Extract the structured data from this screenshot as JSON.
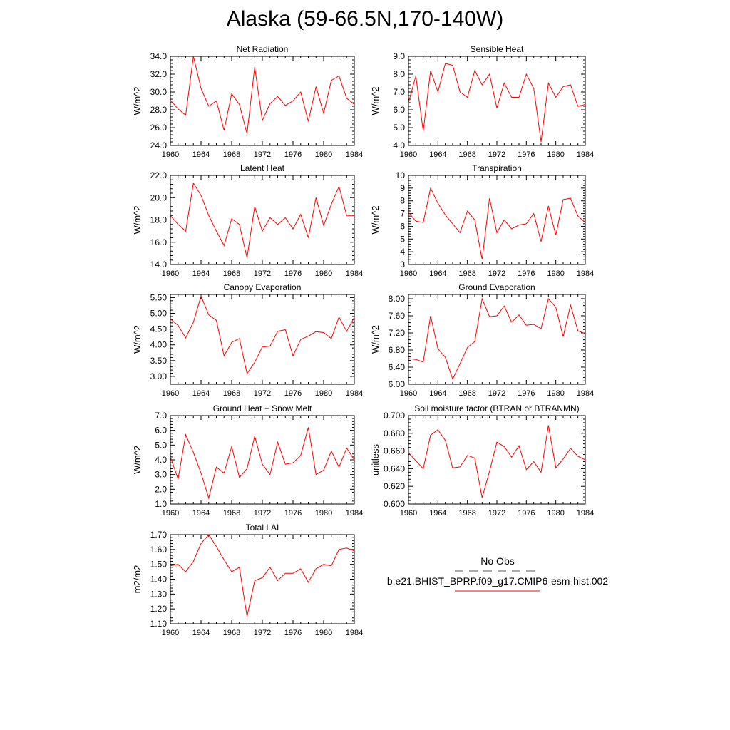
{
  "title": "Alaska (59-66.5N,170-140W)",
  "colors": {
    "model_line": "#ff0000",
    "obs_line": "#555555",
    "axis": "#000000"
  },
  "legend": {
    "obs_label": "No Obs",
    "model_label": "b.e21.BHIST_BPRP.f09_g17.CMIP6-esm-hist.002"
  },
  "chart_data": [
    {
      "type": "line",
      "title": "Net Radiation",
      "xlabel": "",
      "ylabel": "W/m^2",
      "xlim": [
        1960,
        1984
      ],
      "ylim": [
        24.0,
        34.0
      ],
      "xticks": [
        1960,
        1964,
        1968,
        1972,
        1976,
        1980,
        1984
      ],
      "yticks": [
        24.0,
        26.0,
        28.0,
        30.0,
        32.0,
        34.0
      ],
      "ydecimals": 1,
      "series": [
        {
          "color": "#ff0000",
          "x": [
            1960,
            1961,
            1962,
            1963,
            1964,
            1965,
            1966,
            1967,
            1968,
            1969,
            1970,
            1971,
            1972,
            1973,
            1974,
            1975,
            1976,
            1977,
            1978,
            1979,
            1980,
            1981,
            1982,
            1983,
            1984
          ],
          "values": [
            29.1,
            28.1,
            27.4,
            34.0,
            30.4,
            28.4,
            29.0,
            25.7,
            29.8,
            28.6,
            25.3,
            32.8,
            26.8,
            28.7,
            29.5,
            28.5,
            29.0,
            30.0,
            26.7,
            30.6,
            27.6,
            31.3,
            31.8,
            29.3,
            28.6
          ]
        }
      ]
    },
    {
      "type": "line",
      "title": "Sensible Heat",
      "xlabel": "",
      "ylabel": "W/m^2",
      "xlim": [
        1960,
        1984
      ],
      "ylim": [
        4.0,
        9.0
      ],
      "xticks": [
        1960,
        1964,
        1968,
        1972,
        1976,
        1980,
        1984
      ],
      "yticks": [
        4.0,
        5.0,
        6.0,
        7.0,
        8.0,
        9.0
      ],
      "ydecimals": 1,
      "series": [
        {
          "color": "#ff0000",
          "x": [
            1960,
            1961,
            1962,
            1963,
            1964,
            1965,
            1966,
            1967,
            1968,
            1969,
            1970,
            1971,
            1972,
            1973,
            1974,
            1975,
            1976,
            1977,
            1978,
            1979,
            1980,
            1981,
            1982,
            1983,
            1984
          ],
          "values": [
            6.4,
            7.9,
            4.8,
            8.2,
            7.0,
            8.6,
            8.5,
            7.0,
            6.7,
            8.2,
            7.4,
            8.0,
            6.1,
            7.5,
            6.7,
            6.7,
            8.0,
            7.2,
            4.2,
            7.5,
            6.7,
            7.3,
            7.4,
            6.2,
            6.3
          ]
        }
      ]
    },
    {
      "type": "line",
      "title": "Latent Heat",
      "xlabel": "",
      "ylabel": "W/m^2",
      "xlim": [
        1960,
        1984
      ],
      "ylim": [
        14.0,
        22.0
      ],
      "xticks": [
        1960,
        1964,
        1968,
        1972,
        1976,
        1980,
        1984
      ],
      "yticks": [
        14.0,
        16.0,
        18.0,
        20.0,
        22.0
      ],
      "ydecimals": 1,
      "series": [
        {
          "color": "#ff0000",
          "x": [
            1960,
            1961,
            1962,
            1963,
            1964,
            1965,
            1966,
            1967,
            1968,
            1969,
            1970,
            1971,
            1972,
            1973,
            1974,
            1975,
            1976,
            1977,
            1978,
            1979,
            1980,
            1981,
            1982,
            1983,
            1984
          ],
          "values": [
            18.4,
            17.6,
            17.0,
            21.3,
            20.2,
            18.4,
            17.0,
            15.7,
            18.1,
            17.6,
            14.6,
            19.2,
            17.0,
            18.2,
            17.6,
            18.2,
            17.2,
            18.5,
            16.4,
            20.0,
            17.5,
            19.4,
            21.0,
            18.4,
            18.4
          ]
        }
      ]
    },
    {
      "type": "line",
      "title": "Transpiration",
      "xlabel": "",
      "ylabel": "W/m^2",
      "xlim": [
        1960,
        1984
      ],
      "ylim": [
        3,
        10
      ],
      "xticks": [
        1960,
        1964,
        1968,
        1972,
        1976,
        1980,
        1984
      ],
      "yticks": [
        3,
        4,
        5,
        6,
        7,
        8,
        9,
        10
      ],
      "ydecimals": 0,
      "series": [
        {
          "color": "#ff0000",
          "x": [
            1960,
            1961,
            1962,
            1963,
            1964,
            1965,
            1966,
            1967,
            1968,
            1969,
            1970,
            1971,
            1972,
            1973,
            1974,
            1975,
            1976,
            1977,
            1978,
            1979,
            1980,
            1981,
            1982,
            1983,
            1984
          ],
          "values": [
            7.1,
            6.4,
            6.3,
            9.0,
            7.8,
            6.9,
            6.2,
            5.5,
            7.2,
            6.5,
            3.4,
            8.2,
            5.5,
            6.5,
            5.8,
            6.1,
            6.2,
            7.0,
            4.8,
            7.6,
            5.3,
            8.1,
            8.2,
            6.8,
            6.3
          ]
        }
      ]
    },
    {
      "type": "line",
      "title": "Canopy Evaporation",
      "xlabel": "",
      "ylabel": "W/m^2",
      "xlim": [
        1960,
        1984
      ],
      "ylim": [
        2.75,
        5.6
      ],
      "xticks": [
        1960,
        1964,
        1968,
        1972,
        1976,
        1980,
        1984
      ],
      "yticks": [
        3.0,
        3.5,
        4.0,
        4.5,
        5.0,
        5.5
      ],
      "ydecimals": 2,
      "series": [
        {
          "color": "#ff0000",
          "x": [
            1960,
            1961,
            1962,
            1963,
            1964,
            1965,
            1966,
            1967,
            1968,
            1969,
            1970,
            1971,
            1972,
            1973,
            1974,
            1975,
            1976,
            1977,
            1978,
            1979,
            1980,
            1981,
            1982,
            1983,
            1984
          ],
          "values": [
            4.82,
            4.62,
            4.22,
            4.72,
            5.55,
            4.95,
            4.78,
            3.65,
            4.08,
            4.2,
            3.09,
            3.45,
            3.93,
            3.96,
            4.43,
            4.48,
            3.65,
            4.17,
            4.28,
            4.42,
            4.39,
            4.2,
            4.88,
            4.43,
            4.87
          ]
        }
      ]
    },
    {
      "type": "line",
      "title": "Ground Evaporation",
      "xlabel": "",
      "ylabel": "W/m^2",
      "xlim": [
        1960,
        1984
      ],
      "ylim": [
        6.0,
        8.1
      ],
      "xticks": [
        1960,
        1964,
        1968,
        1972,
        1976,
        1980,
        1984
      ],
      "yticks": [
        6.0,
        6.4,
        6.8,
        7.2,
        7.6,
        8.0
      ],
      "ydecimals": 2,
      "series": [
        {
          "color": "#ff0000",
          "x": [
            1960,
            1961,
            1962,
            1963,
            1964,
            1965,
            1966,
            1967,
            1968,
            1969,
            1970,
            1971,
            1972,
            1973,
            1974,
            1975,
            1976,
            1977,
            1978,
            1979,
            1980,
            1981,
            1982,
            1983,
            1984
          ],
          "values": [
            6.6,
            6.58,
            6.52,
            7.6,
            6.83,
            6.63,
            6.12,
            6.48,
            6.86,
            7.0,
            8.0,
            7.58,
            7.6,
            7.83,
            7.45,
            7.62,
            7.38,
            7.4,
            7.3,
            8.0,
            7.8,
            7.11,
            7.85,
            7.25,
            7.18
          ]
        }
      ]
    },
    {
      "type": "line",
      "title": "Ground Heat + Snow Melt",
      "xlabel": "",
      "ylabel": "W/m^2",
      "xlim": [
        1960,
        1984
      ],
      "ylim": [
        1.0,
        7.0
      ],
      "xticks": [
        1960,
        1964,
        1968,
        1972,
        1976,
        1980,
        1984
      ],
      "yticks": [
        1.0,
        2.0,
        3.0,
        4.0,
        5.0,
        6.0,
        7.0
      ],
      "ydecimals": 1,
      "series": [
        {
          "color": "#ff0000",
          "x": [
            1960,
            1961,
            1962,
            1963,
            1964,
            1965,
            1966,
            1967,
            1968,
            1969,
            1970,
            1971,
            1972,
            1973,
            1974,
            1975,
            1976,
            1977,
            1978,
            1979,
            1980,
            1981,
            1982,
            1983,
            1984
          ],
          "values": [
            4.2,
            2.7,
            5.7,
            4.5,
            3.1,
            1.4,
            3.5,
            3.1,
            4.9,
            2.8,
            3.4,
            5.6,
            3.7,
            3.0,
            5.2,
            3.7,
            3.8,
            4.3,
            6.2,
            3.0,
            3.3,
            4.6,
            3.5,
            4.8,
            4.0
          ]
        }
      ]
    },
    {
      "type": "line",
      "title": "Soil moisture factor (BTRAN or BTRANMN)",
      "xlabel": "",
      "ylabel": "unitless",
      "xlim": [
        1960,
        1984
      ],
      "ylim": [
        0.6,
        0.7
      ],
      "xticks": [
        1960,
        1964,
        1968,
        1972,
        1976,
        1980,
        1984
      ],
      "yticks": [
        0.6,
        0.62,
        0.64,
        0.66,
        0.68,
        0.7
      ],
      "ydecimals": 3,
      "series": [
        {
          "color": "#ff0000",
          "x": [
            1960,
            1961,
            1962,
            1963,
            1964,
            1965,
            1966,
            1967,
            1968,
            1969,
            1970,
            1971,
            1972,
            1973,
            1974,
            1975,
            1976,
            1977,
            1978,
            1979,
            1980,
            1981,
            1982,
            1983,
            1984
          ],
          "values": [
            0.658,
            0.649,
            0.64,
            0.678,
            0.684,
            0.672,
            0.641,
            0.642,
            0.655,
            0.652,
            0.607,
            0.637,
            0.67,
            0.665,
            0.653,
            0.666,
            0.639,
            0.648,
            0.636,
            0.689,
            0.641,
            0.651,
            0.663,
            0.654,
            0.65
          ]
        }
      ]
    },
    {
      "type": "line",
      "title": "Total LAI",
      "xlabel": "",
      "ylabel": "m2/m2",
      "xlim": [
        1960,
        1984
      ],
      "ylim": [
        1.1,
        1.7
      ],
      "xticks": [
        1960,
        1964,
        1968,
        1972,
        1976,
        1980,
        1984
      ],
      "yticks": [
        1.1,
        1.2,
        1.3,
        1.4,
        1.5,
        1.6,
        1.7
      ],
      "ydecimals": 2,
      "series": [
        {
          "color": "#ff0000",
          "x": [
            1960,
            1961,
            1962,
            1963,
            1964,
            1965,
            1966,
            1967,
            1968,
            1969,
            1970,
            1971,
            1972,
            1973,
            1974,
            1975,
            1976,
            1977,
            1978,
            1979,
            1980,
            1981,
            1982,
            1983,
            1984
          ],
          "values": [
            1.49,
            1.5,
            1.45,
            1.52,
            1.64,
            1.7,
            1.62,
            1.53,
            1.45,
            1.48,
            1.15,
            1.39,
            1.41,
            1.48,
            1.39,
            1.44,
            1.44,
            1.47,
            1.38,
            1.47,
            1.5,
            1.49,
            1.6,
            1.61,
            1.59
          ]
        }
      ]
    }
  ]
}
